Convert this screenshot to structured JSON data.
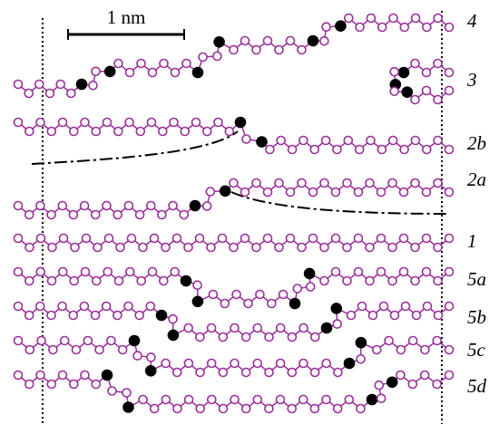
{
  "scale_bar": {
    "label": "1 nm"
  },
  "row_labels": [
    "4",
    "3",
    "2b",
    "2a",
    "1",
    "5a",
    "5b",
    "5c",
    "5d"
  ]
}
